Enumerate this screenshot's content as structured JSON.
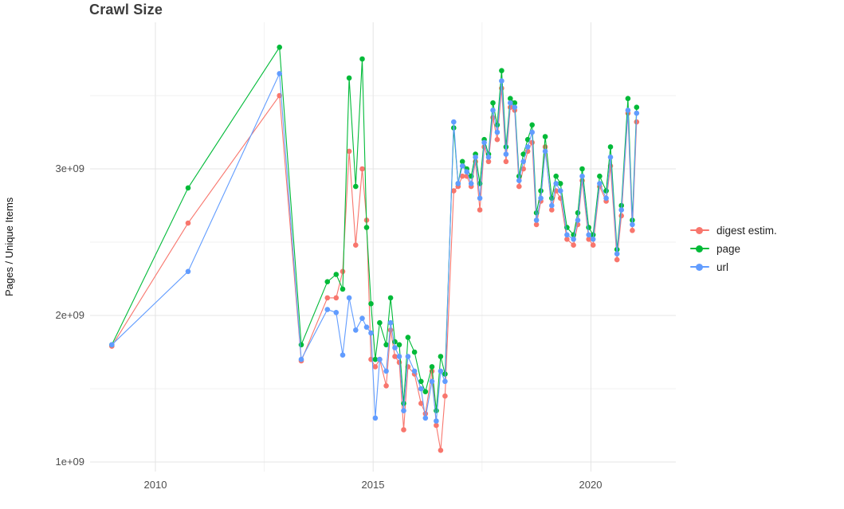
{
  "title": "Crawl Size",
  "axes": {
    "y_label": "Pages / Unique Items",
    "x_ticks": [
      "2010",
      "2015",
      "2020"
    ],
    "y_ticks": [
      "1e+09",
      "2e+09",
      "3e+09"
    ]
  },
  "legend": {
    "items": [
      {
        "label": "digest estim.",
        "color": "#F8766D"
      },
      {
        "label": "page",
        "color": "#00BA38"
      },
      {
        "label": "url",
        "color": "#619CFF"
      }
    ]
  },
  "chart_data": {
    "type": "line",
    "title": "Crawl Size",
    "xlabel": "",
    "ylabel": "Pages / Unique Items",
    "xlim": [
      2008.5,
      2021.95
    ],
    "ylim": [
      1000000000.0,
      4000000000.0
    ],
    "x_major_ticks": [
      2010,
      2015,
      2020
    ],
    "x_minor_ticks": [
      2012.5,
      2017.5
    ],
    "y_major_ticks": [
      1000000000.0,
      2000000000.0,
      3000000000.0
    ],
    "y_minor_ticks": [
      1500000000.0,
      2500000000.0,
      3500000000.0
    ],
    "grid": true,
    "legend_position": "right",
    "x_unit": "year (decimal)",
    "x": [
      2009.0,
      2010.75,
      2012.85,
      2013.35,
      2013.95,
      2014.15,
      2014.3,
      2014.45,
      2014.6,
      2014.75,
      2014.85,
      2014.95,
      2015.05,
      2015.15,
      2015.3,
      2015.4,
      2015.5,
      2015.6,
      2015.7,
      2015.8,
      2015.95,
      2016.1,
      2016.2,
      2016.35,
      2016.45,
      2016.55,
      2016.65,
      2016.85,
      2016.95,
      2017.05,
      2017.15,
      2017.25,
      2017.35,
      2017.45,
      2017.55,
      2017.65,
      2017.75,
      2017.85,
      2017.95,
      2018.05,
      2018.15,
      2018.25,
      2018.35,
      2018.45,
      2018.55,
      2018.65,
      2018.75,
      2018.85,
      2018.95,
      2019.1,
      2019.2,
      2019.3,
      2019.45,
      2019.6,
      2019.7,
      2019.8,
      2019.95,
      2020.05,
      2020.2,
      2020.35,
      2020.45,
      2020.6,
      2020.7,
      2020.85,
      2020.95,
      2021.05
    ],
    "series": [
      {
        "name": "digest estim.",
        "color": "#F8766D",
        "values": [
          1790000000.0,
          2630000000.0,
          3500000000.0,
          1690000000.0,
          2120000000.0,
          2120000000.0,
          2300000000.0,
          3120000000.0,
          2480000000.0,
          3000000000.0,
          2650000000.0,
          1700000000.0,
          1650000000.0,
          1700000000.0,
          1520000000.0,
          1900000000.0,
          1720000000.0,
          1680000000.0,
          1220000000.0,
          1650000000.0,
          1600000000.0,
          1400000000.0,
          1330000000.0,
          1620000000.0,
          1250000000.0,
          1080000000.0,
          1450000000.0,
          2850000000.0,
          2880000000.0,
          2950000000.0,
          2950000000.0,
          2880000000.0,
          3050000000.0,
          2720000000.0,
          3150000000.0,
          3050000000.0,
          3350000000.0,
          3200000000.0,
          3550000000.0,
          3050000000.0,
          3420000000.0,
          3400000000.0,
          2880000000.0,
          3000000000.0,
          3120000000.0,
          3180000000.0,
          2620000000.0,
          2780000000.0,
          3150000000.0,
          2720000000.0,
          2850000000.0,
          2800000000.0,
          2520000000.0,
          2480000000.0,
          2620000000.0,
          2920000000.0,
          2520000000.0,
          2480000000.0,
          2880000000.0,
          2780000000.0,
          3020000000.0,
          2380000000.0,
          2680000000.0,
          3380000000.0,
          2580000000.0,
          3320000000.0
        ]
      },
      {
        "name": "page",
        "color": "#00BA38",
        "values": [
          1800000000.0,
          2870000000.0,
          3830000000.0,
          1800000000.0,
          2230000000.0,
          2280000000.0,
          2180000000.0,
          3620000000.0,
          2880000000.0,
          3750000000.0,
          2600000000.0,
          2080000000.0,
          1700000000.0,
          1950000000.0,
          1800000000.0,
          2120000000.0,
          1820000000.0,
          1800000000.0,
          1400000000.0,
          1850000000.0,
          1750000000.0,
          1550000000.0,
          1480000000.0,
          1650000000.0,
          1350000000.0,
          1720000000.0,
          1600000000.0,
          3280000000.0,
          2900000000.0,
          3050000000.0,
          3000000000.0,
          2950000000.0,
          3100000000.0,
          2900000000.0,
          3200000000.0,
          3100000000.0,
          3450000000.0,
          3300000000.0,
          3670000000.0,
          3150000000.0,
          3480000000.0,
          3450000000.0,
          2950000000.0,
          3100000000.0,
          3200000000.0,
          3300000000.0,
          2700000000.0,
          2850000000.0,
          3220000000.0,
          2800000000.0,
          2950000000.0,
          2900000000.0,
          2600000000.0,
          2550000000.0,
          2700000000.0,
          3000000000.0,
          2600000000.0,
          2550000000.0,
          2950000000.0,
          2850000000.0,
          3150000000.0,
          2450000000.0,
          2750000000.0,
          3480000000.0,
          2650000000.0,
          3420000000.0
        ]
      },
      {
        "name": "url",
        "color": "#619CFF",
        "values": [
          1800000000.0,
          2300000000.0,
          3650000000.0,
          1700000000.0,
          2040000000.0,
          2020000000.0,
          1730000000.0,
          2120000000.0,
          1900000000.0,
          1980000000.0,
          1920000000.0,
          1880000000.0,
          1300000000.0,
          1700000000.0,
          1620000000.0,
          1950000000.0,
          1780000000.0,
          1720000000.0,
          1350000000.0,
          1720000000.0,
          1620000000.0,
          1500000000.0,
          1300000000.0,
          1550000000.0,
          1280000000.0,
          1620000000.0,
          1550000000.0,
          3320000000.0,
          2900000000.0,
          3020000000.0,
          2980000000.0,
          2900000000.0,
          3080000000.0,
          2800000000.0,
          3180000000.0,
          3080000000.0,
          3400000000.0,
          3250000000.0,
          3600000000.0,
          3100000000.0,
          3450000000.0,
          3420000000.0,
          2920000000.0,
          3050000000.0,
          3150000000.0,
          3250000000.0,
          2650000000.0,
          2800000000.0,
          3120000000.0,
          2750000000.0,
          2900000000.0,
          2850000000.0,
          2550000000.0,
          2520000000.0,
          2650000000.0,
          2950000000.0,
          2550000000.0,
          2520000000.0,
          2900000000.0,
          2800000000.0,
          3080000000.0,
          2420000000.0,
          2720000000.0,
          3400000000.0,
          2620000000.0,
          3380000000.0
        ]
      }
    ]
  }
}
